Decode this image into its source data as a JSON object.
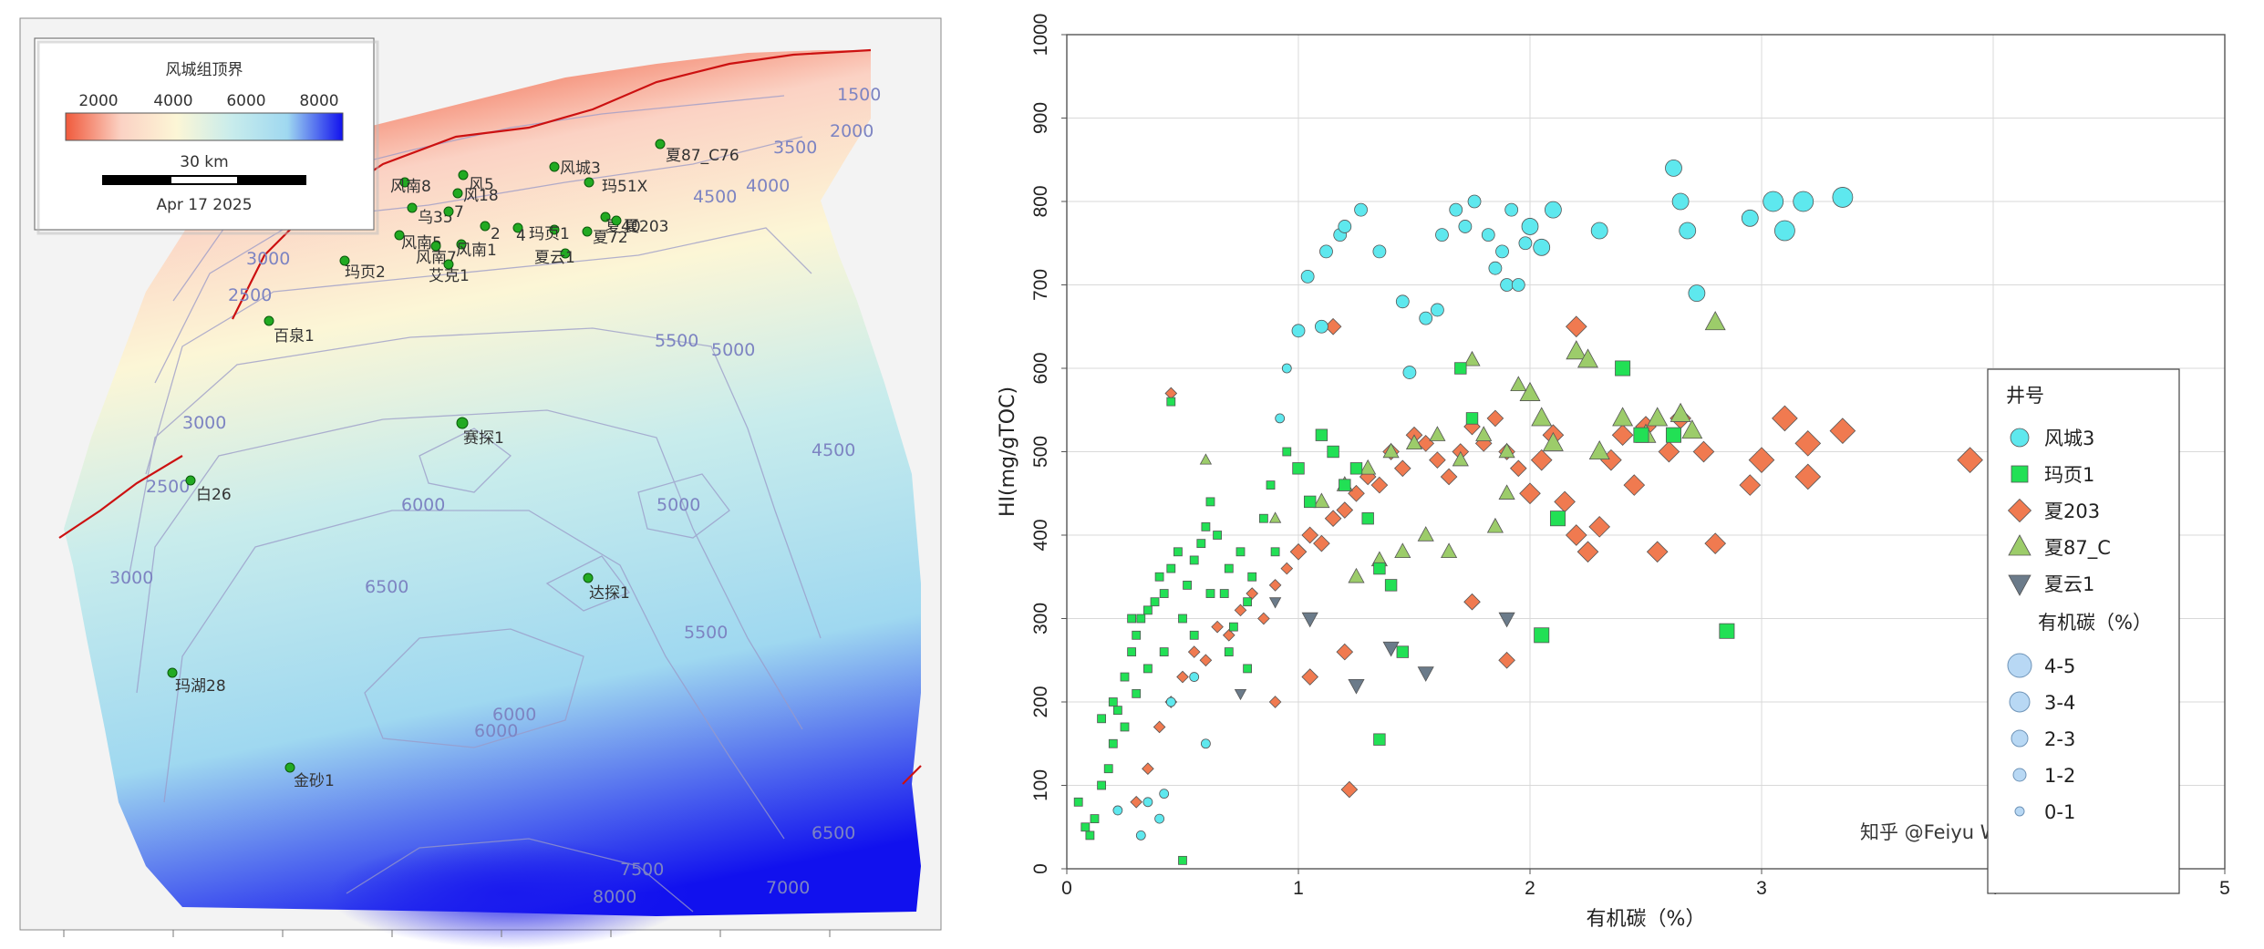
{
  "map": {
    "legend": {
      "title": "风城组顶界",
      "colorbar_ticks": [
        "2000",
        "4000",
        "6000",
        "8000"
      ],
      "scale_label": "30 km",
      "date": "Apr 17 2025",
      "colors": [
        "#f05a3c",
        "#fbd2c4",
        "#fcf6d6",
        "#c8ecec",
        "#9fd8f0",
        "#1111ee"
      ]
    },
    "wells": [
      {
        "name": "风城3"
      },
      {
        "name": "夏87_C76"
      },
      {
        "name": "风南8"
      },
      {
        "name": "风5"
      },
      {
        "name": "风18"
      },
      {
        "name": "玛51X"
      },
      {
        "name": "乌35"
      },
      {
        "name": "7"
      },
      {
        "name": "2"
      },
      {
        "name": "4"
      },
      {
        "name": "玛页1"
      },
      {
        "name": "夏72"
      },
      {
        "name": "夏40"
      },
      {
        "name": "夏203"
      },
      {
        "name": "风南5"
      },
      {
        "name": "风南7"
      },
      {
        "name": "风南1"
      },
      {
        "name": "夏云1"
      },
      {
        "name": "艾克1"
      },
      {
        "name": "玛页2"
      },
      {
        "name": "百泉1"
      },
      {
        "name": "赛探1"
      },
      {
        "name": "白26"
      },
      {
        "name": "达探1"
      },
      {
        "name": "玛湖28"
      },
      {
        "name": "金砂1"
      }
    ],
    "contour_labels": [
      "1500",
      "2000",
      "2500",
      "3000",
      "3500",
      "4000",
      "4500",
      "5000",
      "5500",
      "6000",
      "6500",
      "7000",
      "7500",
      "8000"
    ]
  },
  "chart_data": {
    "type": "scatter",
    "xlabel": "有机碳（%）",
    "ylabel": "HI(mg/gTOC)",
    "xlim": [
      0,
      5
    ],
    "ylim": [
      0,
      1000
    ],
    "x_ticks": [
      0,
      1,
      2,
      3,
      4,
      5
    ],
    "y_ticks": [
      0,
      100,
      200,
      300,
      400,
      500,
      600,
      700,
      800,
      900,
      1000
    ],
    "grid": true,
    "legend_position": "right",
    "legend_title": "井号",
    "size_legend_title": "有机碳（%）",
    "size_legend": [
      "4-5",
      "3-4",
      "2-3",
      "1-2",
      "0-1"
    ],
    "watermark": "知乎 @Feiyu Wang",
    "series": [
      {
        "name": "风城3",
        "marker": "circle",
        "color": "#5ee8ee",
        "points": [
          [
            0.32,
            40
          ],
          [
            0.4,
            60
          ],
          [
            0.42,
            90
          ],
          [
            0.35,
            80
          ],
          [
            0.22,
            70
          ],
          [
            0.45,
            200
          ],
          [
            0.55,
            230
          ],
          [
            0.6,
            150
          ],
          [
            0.92,
            540
          ],
          [
            0.95,
            600
          ],
          [
            1.0,
            645
          ],
          [
            1.04,
            710
          ],
          [
            1.1,
            650
          ],
          [
            1.12,
            740
          ],
          [
            1.18,
            760
          ],
          [
            1.2,
            770
          ],
          [
            1.27,
            790
          ],
          [
            1.35,
            740
          ],
          [
            1.45,
            680
          ],
          [
            1.48,
            595
          ],
          [
            1.55,
            660
          ],
          [
            1.6,
            670
          ],
          [
            1.62,
            760
          ],
          [
            1.68,
            790
          ],
          [
            1.72,
            770
          ],
          [
            1.76,
            800
          ],
          [
            1.82,
            760
          ],
          [
            1.85,
            720
          ],
          [
            1.88,
            740
          ],
          [
            1.9,
            700
          ],
          [
            1.92,
            790
          ],
          [
            1.95,
            700
          ],
          [
            1.98,
            750
          ],
          [
            2.0,
            770
          ],
          [
            2.05,
            745
          ],
          [
            2.1,
            790
          ],
          [
            2.3,
            765
          ],
          [
            2.62,
            840
          ],
          [
            2.65,
            800
          ],
          [
            2.68,
            765
          ],
          [
            2.72,
            690
          ],
          [
            2.95,
            780
          ],
          [
            3.05,
            800
          ],
          [
            3.1,
            765
          ],
          [
            3.18,
            800
          ],
          [
            3.35,
            805
          ]
        ]
      },
      {
        "name": "玛页1",
        "marker": "square",
        "color": "#22e055",
        "points": [
          [
            0.05,
            80
          ],
          [
            0.08,
            50
          ],
          [
            0.1,
            40
          ],
          [
            0.12,
            60
          ],
          [
            0.15,
            100
          ],
          [
            0.18,
            120
          ],
          [
            0.2,
            150
          ],
          [
            0.22,
            190
          ],
          [
            0.25,
            230
          ],
          [
            0.28,
            260
          ],
          [
            0.3,
            280
          ],
          [
            0.32,
            300
          ],
          [
            0.35,
            310
          ],
          [
            0.38,
            320
          ],
          [
            0.4,
            350
          ],
          [
            0.42,
            330
          ],
          [
            0.45,
            360
          ],
          [
            0.48,
            380
          ],
          [
            0.5,
            300
          ],
          [
            0.52,
            340
          ],
          [
            0.55,
            370
          ],
          [
            0.58,
            390
          ],
          [
            0.6,
            410
          ],
          [
            0.62,
            440
          ],
          [
            0.65,
            400
          ],
          [
            0.68,
            330
          ],
          [
            0.7,
            360
          ],
          [
            0.72,
            290
          ],
          [
            0.75,
            380
          ],
          [
            0.78,
            320
          ],
          [
            0.8,
            350
          ],
          [
            0.85,
            420
          ],
          [
            0.88,
            460
          ],
          [
            0.9,
            380
          ],
          [
            0.95,
            500
          ],
          [
            1.0,
            480
          ],
          [
            1.05,
            440
          ],
          [
            1.1,
            520
          ],
          [
            1.15,
            500
          ],
          [
            1.2,
            460
          ],
          [
            1.25,
            480
          ],
          [
            1.3,
            420
          ],
          [
            1.35,
            360
          ],
          [
            1.4,
            340
          ],
          [
            1.45,
            260
          ],
          [
            1.7,
            600
          ],
          [
            1.75,
            540
          ],
          [
            2.05,
            280
          ],
          [
            2.12,
            420
          ],
          [
            2.4,
            600
          ],
          [
            2.48,
            520
          ],
          [
            2.62,
            520
          ],
          [
            2.85,
            285
          ],
          [
            1.35,
            155
          ],
          [
            0.45,
            560
          ],
          [
            0.2,
            200
          ],
          [
            0.25,
            170
          ],
          [
            0.3,
            210
          ],
          [
            0.35,
            240
          ],
          [
            0.15,
            180
          ],
          [
            0.28,
            300
          ],
          [
            0.42,
            260
          ],
          [
            0.55,
            280
          ],
          [
            0.62,
            330
          ],
          [
            0.7,
            260
          ],
          [
            0.78,
            240
          ],
          [
            0.5,
            10
          ]
        ]
      },
      {
        "name": "夏203",
        "marker": "diamond",
        "color": "#f07a50",
        "points": [
          [
            0.3,
            80
          ],
          [
            0.35,
            120
          ],
          [
            0.4,
            170
          ],
          [
            0.45,
            200
          ],
          [
            0.5,
            230
          ],
          [
            0.55,
            260
          ],
          [
            0.6,
            250
          ],
          [
            0.65,
            290
          ],
          [
            0.7,
            280
          ],
          [
            0.75,
            310
          ],
          [
            0.8,
            330
          ],
          [
            0.85,
            300
          ],
          [
            0.9,
            340
          ],
          [
            0.95,
            360
          ],
          [
            1.0,
            380
          ],
          [
            1.05,
            400
          ],
          [
            1.1,
            390
          ],
          [
            1.15,
            420
          ],
          [
            1.2,
            430
          ],
          [
            1.25,
            450
          ],
          [
            1.3,
            470
          ],
          [
            1.35,
            460
          ],
          [
            1.4,
            500
          ],
          [
            1.45,
            480
          ],
          [
            1.5,
            520
          ],
          [
            1.55,
            510
          ],
          [
            1.6,
            490
          ],
          [
            1.65,
            470
          ],
          [
            1.7,
            500
          ],
          [
            1.75,
            530
          ],
          [
            1.8,
            510
          ],
          [
            1.85,
            540
          ],
          [
            1.9,
            500
          ],
          [
            1.95,
            480
          ],
          [
            2.0,
            450
          ],
          [
            2.05,
            490
          ],
          [
            2.1,
            520
          ],
          [
            2.15,
            440
          ],
          [
            2.2,
            400
          ],
          [
            2.25,
            380
          ],
          [
            2.3,
            410
          ],
          [
            2.35,
            490
          ],
          [
            2.4,
            520
          ],
          [
            2.45,
            460
          ],
          [
            2.5,
            530
          ],
          [
            2.55,
            380
          ],
          [
            2.6,
            500
          ],
          [
            2.65,
            540
          ],
          [
            2.75,
            500
          ],
          [
            2.8,
            390
          ],
          [
            2.95,
            460
          ],
          [
            3.0,
            490
          ],
          [
            3.1,
            540
          ],
          [
            3.2,
            510
          ],
          [
            3.2,
            470
          ],
          [
            3.35,
            525
          ],
          [
            3.9,
            490
          ],
          [
            1.22,
            95
          ],
          [
            1.15,
            650
          ],
          [
            2.2,
            650
          ],
          [
            0.45,
            570
          ],
          [
            1.75,
            320
          ],
          [
            1.9,
            250
          ],
          [
            0.9,
            200
          ],
          [
            1.05,
            230
          ],
          [
            1.2,
            260
          ]
        ]
      },
      {
        "name": "夏87_C",
        "marker": "triangle",
        "color": "#9ccc6a",
        "points": [
          [
            0.6,
            490
          ],
          [
            0.9,
            420
          ],
          [
            1.1,
            440
          ],
          [
            1.2,
            460
          ],
          [
            1.3,
            480
          ],
          [
            1.4,
            500
          ],
          [
            1.5,
            510
          ],
          [
            1.6,
            520
          ],
          [
            1.7,
            490
          ],
          [
            1.8,
            520
          ],
          [
            1.9,
            500
          ],
          [
            1.9,
            450
          ],
          [
            2.0,
            570
          ],
          [
            2.05,
            540
          ],
          [
            2.1,
            510
          ],
          [
            2.2,
            620
          ],
          [
            2.25,
            610
          ],
          [
            2.3,
            500
          ],
          [
            2.4,
            540
          ],
          [
            2.5,
            520
          ],
          [
            2.55,
            540
          ],
          [
            2.65,
            545
          ],
          [
            2.7,
            525
          ],
          [
            2.8,
            655
          ],
          [
            1.75,
            610
          ],
          [
            1.95,
            580
          ],
          [
            1.55,
            400
          ],
          [
            1.45,
            380
          ],
          [
            1.35,
            370
          ],
          [
            1.25,
            350
          ],
          [
            1.65,
            380
          ],
          [
            1.85,
            410
          ]
        ]
      },
      {
        "name": "夏云1",
        "marker": "triangle-down",
        "color": "#6b7b8a",
        "points": [
          [
            0.75,
            210
          ],
          [
            0.9,
            320
          ],
          [
            1.05,
            300
          ],
          [
            1.25,
            220
          ],
          [
            1.4,
            265
          ],
          [
            1.55,
            235
          ],
          [
            1.9,
            300
          ]
        ]
      }
    ]
  }
}
